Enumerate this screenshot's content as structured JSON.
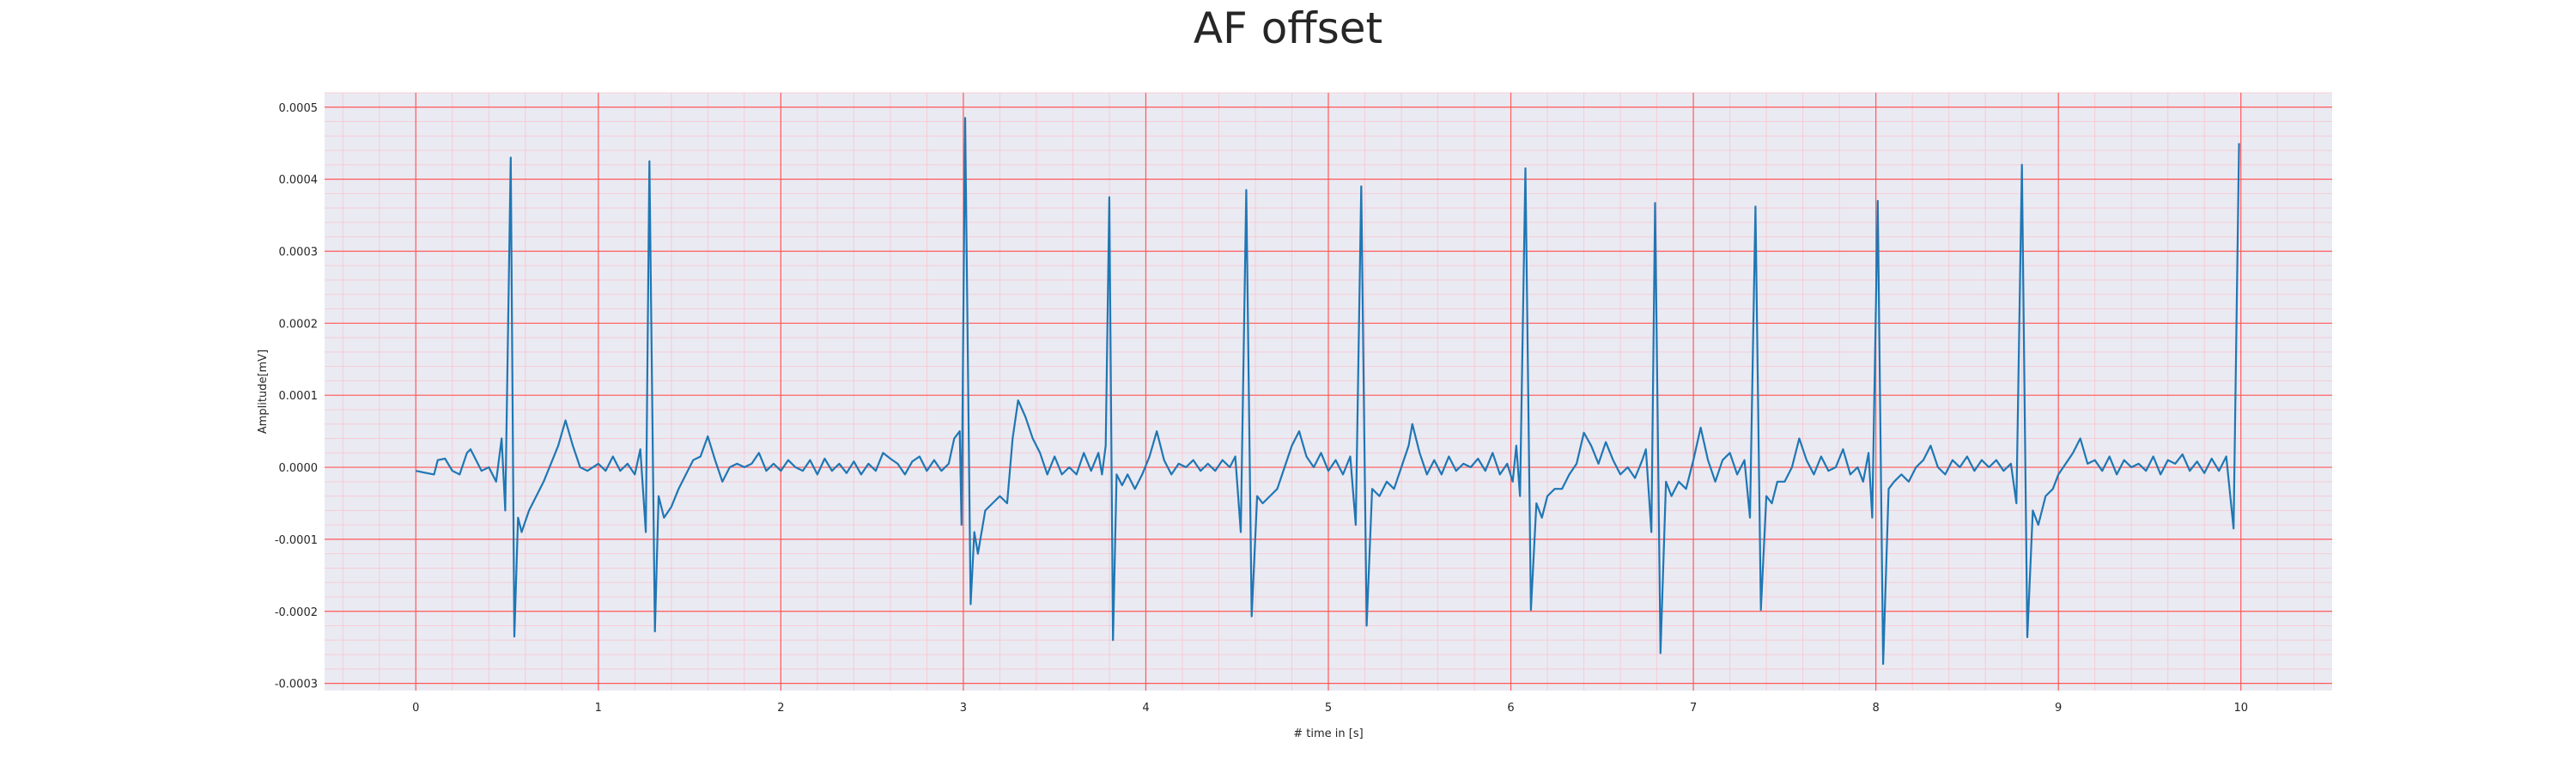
{
  "chart_data": {
    "type": "line",
    "title": "AF offset",
    "xlabel": "# time in [s]",
    "ylabel": "Amplitude[mV]",
    "xlim": [
      -0.5,
      10.5
    ],
    "ylim": [
      -0.00031,
      0.00052
    ],
    "xticks": [
      0,
      1,
      2,
      3,
      4,
      5,
      6,
      7,
      8,
      9,
      10
    ],
    "xtick_labels": [
      "0",
      "1",
      "2",
      "3",
      "4",
      "5",
      "6",
      "7",
      "8",
      "9",
      "10"
    ],
    "yticks": [
      -0.0003,
      -0.0002,
      -0.0001,
      0.0,
      0.0001,
      0.0002,
      0.0003,
      0.0004,
      0.0005
    ],
    "ytick_labels": [
      "-0.0003",
      "-0.0002",
      "-0.0001",
      "0.0000",
      "0.0001",
      "0.0002",
      "0.0003",
      "0.0004",
      "0.0005"
    ],
    "grid": "major and minor, red",
    "colors": {
      "plot_background": "#eaeaf2",
      "major_grid": "#ff5a5a",
      "minor_grid": "#ffb9c4",
      "line": "#1f77b4"
    },
    "series": [
      {
        "points": [
          [
            0.0,
            -5e-06
          ],
          [
            0.06,
            -8e-06
          ],
          [
            0.1,
            -1e-05
          ],
          [
            0.12,
            1e-05
          ],
          [
            0.16,
            1.2e-05
          ],
          [
            0.2,
            -5e-06
          ],
          [
            0.24,
            -1e-05
          ],
          [
            0.28,
            2e-05
          ],
          [
            0.3,
            2.5e-05
          ],
          [
            0.32,
            1.5e-05
          ],
          [
            0.36,
            -5e-06
          ],
          [
            0.4,
            0.0
          ],
          [
            0.44,
            -2e-05
          ],
          [
            0.47,
            4e-05
          ],
          [
            0.49,
            -6e-05
          ],
          [
            0.52,
            0.00043
          ],
          [
            0.54,
            -0.000235
          ],
          [
            0.56,
            -7e-05
          ],
          [
            0.58,
            -9e-05
          ],
          [
            0.62,
            -6e-05
          ],
          [
            0.66,
            -4e-05
          ],
          [
            0.7,
            -2e-05
          ],
          [
            0.74,
            5e-06
          ],
          [
            0.78,
            3e-05
          ],
          [
            0.82,
            6.5e-05
          ],
          [
            0.86,
            3e-05
          ],
          [
            0.9,
            0.0
          ],
          [
            0.94,
            -5e-06
          ],
          [
            1.0,
            5e-06
          ],
          [
            1.04,
            -5e-06
          ],
          [
            1.08,
            1.5e-05
          ],
          [
            1.12,
            -5e-06
          ],
          [
            1.16,
            5e-06
          ],
          [
            1.2,
            -1e-05
          ],
          [
            1.23,
            2.5e-05
          ],
          [
            1.26,
            -9e-05
          ],
          [
            1.28,
            0.000425
          ],
          [
            1.31,
            -0.000228
          ],
          [
            1.33,
            -4e-05
          ],
          [
            1.36,
            -7e-05
          ],
          [
            1.4,
            -5.5e-05
          ],
          [
            1.44,
            -3e-05
          ],
          [
            1.48,
            -1e-05
          ],
          [
            1.52,
            1e-05
          ],
          [
            1.56,
            1.5e-05
          ],
          [
            1.6,
            4.3e-05
          ],
          [
            1.64,
            1e-05
          ],
          [
            1.68,
            -2e-05
          ],
          [
            1.72,
            0.0
          ],
          [
            1.76,
            5e-06
          ],
          [
            1.8,
            0.0
          ],
          [
            1.84,
            5e-06
          ],
          [
            1.88,
            2e-05
          ],
          [
            1.92,
            -5e-06
          ],
          [
            1.96,
            5e-06
          ],
          [
            2.0,
            -5e-06
          ],
          [
            2.04,
            1e-05
          ],
          [
            2.08,
            0.0
          ],
          [
            2.12,
            -5e-06
          ],
          [
            2.16,
            1e-05
          ],
          [
            2.2,
            -1e-05
          ],
          [
            2.24,
            1.2e-05
          ],
          [
            2.28,
            -5e-06
          ],
          [
            2.32,
            5e-06
          ],
          [
            2.36,
            -8e-06
          ],
          [
            2.4,
            8e-06
          ],
          [
            2.44,
            -1e-05
          ],
          [
            2.48,
            5e-06
          ],
          [
            2.52,
            -5e-06
          ],
          [
            2.56,
            2e-05
          ],
          [
            2.6,
            1.2e-05
          ],
          [
            2.64,
            5e-06
          ],
          [
            2.68,
            -1e-05
          ],
          [
            2.72,
            8e-06
          ],
          [
            2.76,
            1.5e-05
          ],
          [
            2.8,
            -5e-06
          ],
          [
            2.84,
            1e-05
          ],
          [
            2.88,
            -5e-06
          ],
          [
            2.92,
            5e-06
          ],
          [
            2.95,
            4e-05
          ],
          [
            2.98,
            5e-05
          ],
          [
            2.99,
            -8e-05
          ],
          [
            3.01,
            0.000485
          ],
          [
            3.04,
            -0.00019
          ],
          [
            3.06,
            -9e-05
          ],
          [
            3.08,
            -0.00012
          ],
          [
            3.12,
            -6e-05
          ],
          [
            3.16,
            -5e-05
          ],
          [
            3.2,
            -4e-05
          ],
          [
            3.24,
            -5e-05
          ],
          [
            3.27,
            4e-05
          ],
          [
            3.3,
            9.3e-05
          ],
          [
            3.34,
            7e-05
          ],
          [
            3.38,
            4e-05
          ],
          [
            3.42,
            2e-05
          ],
          [
            3.46,
            -1e-05
          ],
          [
            3.5,
            1.5e-05
          ],
          [
            3.54,
            -1e-05
          ],
          [
            3.58,
            0.0
          ],
          [
            3.62,
            -1e-05
          ],
          [
            3.66,
            2e-05
          ],
          [
            3.7,
            -5e-06
          ],
          [
            3.74,
            2e-05
          ],
          [
            3.76,
            -1e-05
          ],
          [
            3.78,
            3e-05
          ],
          [
            3.8,
            0.000375
          ],
          [
            3.82,
            -0.00024
          ],
          [
            3.84,
            -1e-05
          ],
          [
            3.87,
            -2.5e-05
          ],
          [
            3.9,
            -1e-05
          ],
          [
            3.94,
            -3e-05
          ],
          [
            3.98,
            -1e-05
          ],
          [
            4.02,
            1.5e-05
          ],
          [
            4.06,
            5e-05
          ],
          [
            4.1,
            1e-05
          ],
          [
            4.14,
            -1e-05
          ],
          [
            4.18,
            5e-06
          ],
          [
            4.22,
            0.0
          ],
          [
            4.26,
            1e-05
          ],
          [
            4.3,
            -5e-06
          ],
          [
            4.34,
            5e-06
          ],
          [
            4.38,
            -5e-06
          ],
          [
            4.42,
            1e-05
          ],
          [
            4.46,
            0.0
          ],
          [
            4.49,
            1.5e-05
          ],
          [
            4.52,
            -9e-05
          ],
          [
            4.55,
            0.000385
          ],
          [
            4.58,
            -0.000207
          ],
          [
            4.61,
            -4e-05
          ],
          [
            4.64,
            -5e-05
          ],
          [
            4.68,
            -4e-05
          ],
          [
            4.72,
            -3e-05
          ],
          [
            4.76,
            0.0
          ],
          [
            4.8,
            3e-05
          ],
          [
            4.84,
            5e-05
          ],
          [
            4.88,
            1.5e-05
          ],
          [
            4.92,
            0.0
          ],
          [
            4.96,
            2e-05
          ],
          [
            5.0,
            -5e-06
          ],
          [
            5.04,
            1e-05
          ],
          [
            5.08,
            -1e-05
          ],
          [
            5.12,
            1.5e-05
          ],
          [
            5.15,
            -8e-05
          ],
          [
            5.18,
            0.00039
          ],
          [
            5.21,
            -0.00022
          ],
          [
            5.24,
            -3e-05
          ],
          [
            5.28,
            -4e-05
          ],
          [
            5.32,
            -2e-05
          ],
          [
            5.36,
            -3e-05
          ],
          [
            5.4,
            0.0
          ],
          [
            5.44,
            3e-05
          ],
          [
            5.46,
            6e-05
          ],
          [
            5.5,
            2e-05
          ],
          [
            5.54,
            -1e-05
          ],
          [
            5.58,
            1e-05
          ],
          [
            5.62,
            -1e-05
          ],
          [
            5.66,
            1.5e-05
          ],
          [
            5.7,
            -5e-06
          ],
          [
            5.74,
            5e-06
          ],
          [
            5.78,
            0.0
          ],
          [
            5.82,
            1.2e-05
          ],
          [
            5.86,
            -5e-06
          ],
          [
            5.9,
            2e-05
          ],
          [
            5.94,
            -1e-05
          ],
          [
            5.98,
            5e-06
          ],
          [
            6.01,
            -2e-05
          ],
          [
            6.03,
            3e-05
          ],
          [
            6.05,
            -4e-05
          ],
          [
            6.08,
            0.000415
          ],
          [
            6.11,
            -0.000198
          ],
          [
            6.14,
            -5e-05
          ],
          [
            6.17,
            -7e-05
          ],
          [
            6.2,
            -4e-05
          ],
          [
            6.24,
            -3e-05
          ],
          [
            6.28,
            -3e-05
          ],
          [
            6.32,
            -1e-05
          ],
          [
            6.36,
            5e-06
          ],
          [
            6.4,
            4.8e-05
          ],
          [
            6.44,
            3e-05
          ],
          [
            6.48,
            5e-06
          ],
          [
            6.52,
            3.5e-05
          ],
          [
            6.56,
            1e-05
          ],
          [
            6.6,
            -1e-05
          ],
          [
            6.64,
            0.0
          ],
          [
            6.68,
            -1.5e-05
          ],
          [
            6.72,
            1e-05
          ],
          [
            6.74,
            2.5e-05
          ],
          [
            6.77,
            -9e-05
          ],
          [
            6.79,
            0.000367
          ],
          [
            6.82,
            -0.000258
          ],
          [
            6.85,
            -2e-05
          ],
          [
            6.88,
            -4e-05
          ],
          [
            6.92,
            -2e-05
          ],
          [
            6.96,
            -3e-05
          ],
          [
            7.0,
            1e-05
          ],
          [
            7.04,
            5.5e-05
          ],
          [
            7.08,
            1e-05
          ],
          [
            7.12,
            -2e-05
          ],
          [
            7.16,
            1e-05
          ],
          [
            7.2,
            2e-05
          ],
          [
            7.24,
            -1e-05
          ],
          [
            7.28,
            1e-05
          ],
          [
            7.31,
            -7e-05
          ],
          [
            7.34,
            0.000362
          ],
          [
            7.37,
            -0.000198
          ],
          [
            7.4,
            -4e-05
          ],
          [
            7.43,
            -5e-05
          ],
          [
            7.46,
            -2e-05
          ],
          [
            7.5,
            -2e-05
          ],
          [
            7.54,
            0.0
          ],
          [
            7.58,
            4e-05
          ],
          [
            7.62,
            1e-05
          ],
          [
            7.66,
            -1e-05
          ],
          [
            7.7,
            1.5e-05
          ],
          [
            7.74,
            -5e-06
          ],
          [
            7.78,
            0.0
          ],
          [
            7.82,
            2.5e-05
          ],
          [
            7.86,
            -1e-05
          ],
          [
            7.9,
            0.0
          ],
          [
            7.93,
            -2e-05
          ],
          [
            7.96,
            2e-05
          ],
          [
            7.98,
            -7e-05
          ],
          [
            8.01,
            0.00037
          ],
          [
            8.04,
            -0.000273
          ],
          [
            8.07,
            -3e-05
          ],
          [
            8.1,
            -2e-05
          ],
          [
            8.14,
            -1e-05
          ],
          [
            8.18,
            -2e-05
          ],
          [
            8.22,
            0.0
          ],
          [
            8.26,
            1e-05
          ],
          [
            8.3,
            3e-05
          ],
          [
            8.34,
            0.0
          ],
          [
            8.38,
            -1e-05
          ],
          [
            8.42,
            1e-05
          ],
          [
            8.46,
            0.0
          ],
          [
            8.5,
            1.5e-05
          ],
          [
            8.54,
            -5e-06
          ],
          [
            8.58,
            1e-05
          ],
          [
            8.62,
            0.0
          ],
          [
            8.66,
            1e-05
          ],
          [
            8.7,
            -5e-06
          ],
          [
            8.74,
            5e-06
          ],
          [
            8.77,
            -5e-05
          ],
          [
            8.8,
            0.00042
          ],
          [
            8.83,
            -0.000236
          ],
          [
            8.86,
            -6e-05
          ],
          [
            8.89,
            -8e-05
          ],
          [
            8.93,
            -4e-05
          ],
          [
            8.97,
            -3e-05
          ],
          [
            9.0,
            -1e-05
          ],
          [
            9.04,
            5e-06
          ],
          [
            9.08,
            2e-05
          ],
          [
            9.12,
            4e-05
          ],
          [
            9.16,
            5e-06
          ],
          [
            9.2,
            1e-05
          ],
          [
            9.24,
            -5e-06
          ],
          [
            9.28,
            1.5e-05
          ],
          [
            9.32,
            -1e-05
          ],
          [
            9.36,
            1e-05
          ],
          [
            9.4,
            0.0
          ],
          [
            9.44,
            5e-06
          ],
          [
            9.48,
            -5e-06
          ],
          [
            9.52,
            1.5e-05
          ],
          [
            9.56,
            -1e-05
          ],
          [
            9.6,
            1e-05
          ],
          [
            9.64,
            5e-06
          ],
          [
            9.68,
            1.8e-05
          ],
          [
            9.72,
            -5e-06
          ],
          [
            9.76,
            8e-06
          ],
          [
            9.8,
            -8e-06
          ],
          [
            9.84,
            1.2e-05
          ],
          [
            9.88,
            -5e-06
          ],
          [
            9.92,
            1.5e-05
          ],
          [
            9.96,
            -8.5e-05
          ],
          [
            9.99,
            0.00045
          ]
        ]
      }
    ]
  }
}
